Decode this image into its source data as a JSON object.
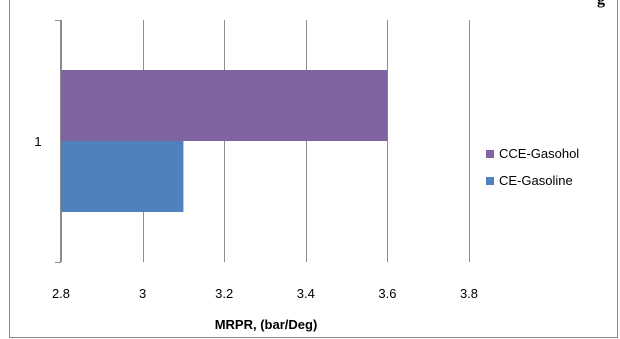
{
  "top_clipped_text": "g",
  "chart_data": {
    "type": "bar",
    "orientation": "horizontal",
    "categories": [
      "1"
    ],
    "series": [
      {
        "name": "CE-Gasoline",
        "values": [
          3.1
        ],
        "color": "#4f81bd"
      },
      {
        "name": "CCE-Gasohol",
        "values": [
          3.6
        ],
        "color": "#8064a2"
      }
    ],
    "xlabel": "MRPR, (bar/Deg)",
    "ylabel": "",
    "xlim": [
      2.8,
      3.8
    ],
    "x_ticks": [
      "2.8",
      "3",
      "3.2",
      "3.4",
      "3.6",
      "3.8"
    ],
    "grid": "vertical",
    "legend_position": "right"
  }
}
